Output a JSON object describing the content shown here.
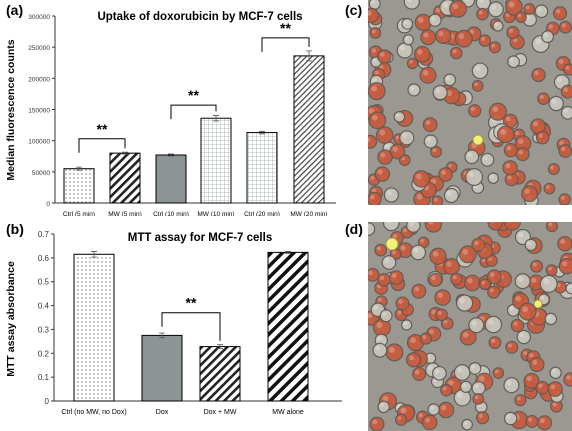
{
  "panels": {
    "a": "(a)",
    "b": "(b)",
    "c": "(c)",
    "d": "(d)"
  },
  "colors": {
    "solid_gray": "#8c9496",
    "bar_edge": "#000000",
    "cell_fill": "#c85a3c",
    "micro_bg": "#9a9890"
  },
  "chart_data": [
    {
      "type": "bar",
      "title": "Uptake of doxorubicin by MCF-7 cells",
      "xlabel": "",
      "ylabel": "Median fluorescence counts",
      "ylim": [
        0,
        300000
      ],
      "yticks": [
        "0",
        "50000",
        "100000",
        "150000",
        "200000",
        "250000",
        "300000"
      ],
      "categories": [
        "Ctrl (5 min)",
        "MW (5 min)",
        "Ctrl (10 min)",
        "MW (10 min)",
        "Ctrl (20 min)",
        "MW (20 min)"
      ],
      "values": [
        55000,
        80000,
        77000,
        136000,
        113000,
        236000
      ],
      "errors": [
        2500,
        1500,
        1500,
        4500,
        2000,
        8000
      ],
      "patterns": [
        "dots",
        "diag",
        "solid",
        "grid",
        "grid",
        "diag-fine"
      ],
      "significance": [
        {
          "from": 0,
          "to": 1,
          "y": 103000,
          "label": "**"
        },
        {
          "from": 2,
          "to": 3,
          "y": 157000,
          "label": "**"
        },
        {
          "from": 4,
          "to": 5,
          "y": 265000,
          "label": "**"
        }
      ]
    },
    {
      "type": "bar",
      "title": "MTT assay for MCF-7 cells",
      "xlabel": "",
      "ylabel": "MTT assay absorbance",
      "ylim": [
        0,
        0.7
      ],
      "yticks": [
        "0",
        "0.1",
        "0.2",
        "0.3",
        "0.4",
        "0.5",
        "0.6",
        "0.7"
      ],
      "categories": [
        "Ctrl (no MW, no Dox)",
        "Dox",
        "Dox + MW",
        "MW alone"
      ],
      "values": [
        0.615,
        0.275,
        0.228,
        0.623
      ],
      "errors": [
        0.012,
        0.01,
        0.008,
        0.004
      ],
      "patterns": [
        "dots",
        "solid",
        "diag",
        "diag-bold"
      ],
      "significance": [
        {
          "from": 1,
          "to": 2,
          "y": 0.37,
          "label": "**"
        }
      ]
    }
  ]
}
